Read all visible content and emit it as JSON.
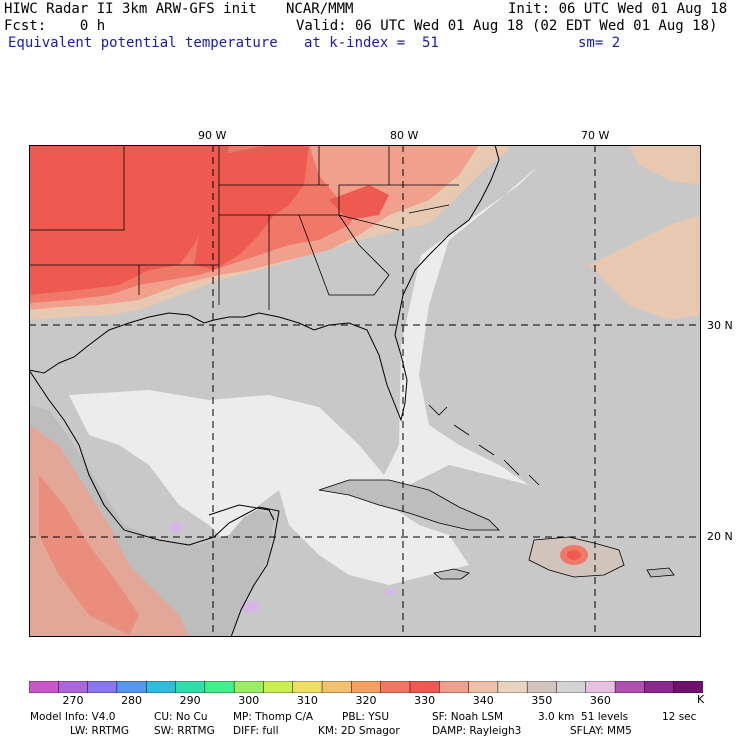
{
  "header": {
    "model_line": "HIWC Radar II 3km ARW-GFS init",
    "org": "NCAR/MMM",
    "init": "Init: 06 UTC Wed 01 Aug 18",
    "fcst": "Fcst:    0 h",
    "valid": "Valid: 06 UTC Wed 01 Aug 18 (02 EDT Wed 01 Aug 18)",
    "field": "Equivalent potential temperature",
    "level": "at k-index =  51",
    "smooth": "sm= 2"
  },
  "map": {
    "lon_labels": [
      "90 W",
      "80 W",
      "70 W"
    ],
    "lat_labels": [
      "30 N",
      "20 N"
    ],
    "colors": {
      "ocean_gray": "#c8c8c8",
      "light_gray": "#ececec",
      "land_gray": "#bdbdbd",
      "tan": "#e8c8b0",
      "salmon": "#f0a08c",
      "orange": "#f0786c",
      "red": "#ef5a50",
      "lavender": "#d8b4e8"
    }
  },
  "colorbar": {
    "colors": [
      "#cc55cc",
      "#aa66dd",
      "#8877ee",
      "#5599ee",
      "#33bbdd",
      "#33ddaa",
      "#44ee88",
      "#99ee66",
      "#ccee55",
      "#eedd66",
      "#f5c070",
      "#f5a060",
      "#f07860",
      "#ef5a50",
      "#f0a08c",
      "#f0c0a8",
      "#e8d4c0",
      "#d0c4bc",
      "#d4d4d4",
      "#e8c0e0",
      "#b050b0",
      "#8c2890",
      "#701070"
    ],
    "labels": [
      "270",
      "280",
      "290",
      "300",
      "310",
      "320",
      "330",
      "340",
      "350",
      "360"
    ],
    "unit": "K"
  },
  "footer": {
    "line1": [
      "Model Info: V4.0",
      "CU: No Cu",
      "MP: Thomp C/A",
      "PBL: YSU",
      "SF: Noah LSM",
      "3.0 km  51 levels",
      "12 sec"
    ],
    "line2": [
      "LW: RRTMG",
      "SW: RRTMG",
      "DIFF: full",
      "KM: 2D Smagor",
      "DAMP: Rayleigh3",
      "SFLAY: MM5"
    ]
  }
}
